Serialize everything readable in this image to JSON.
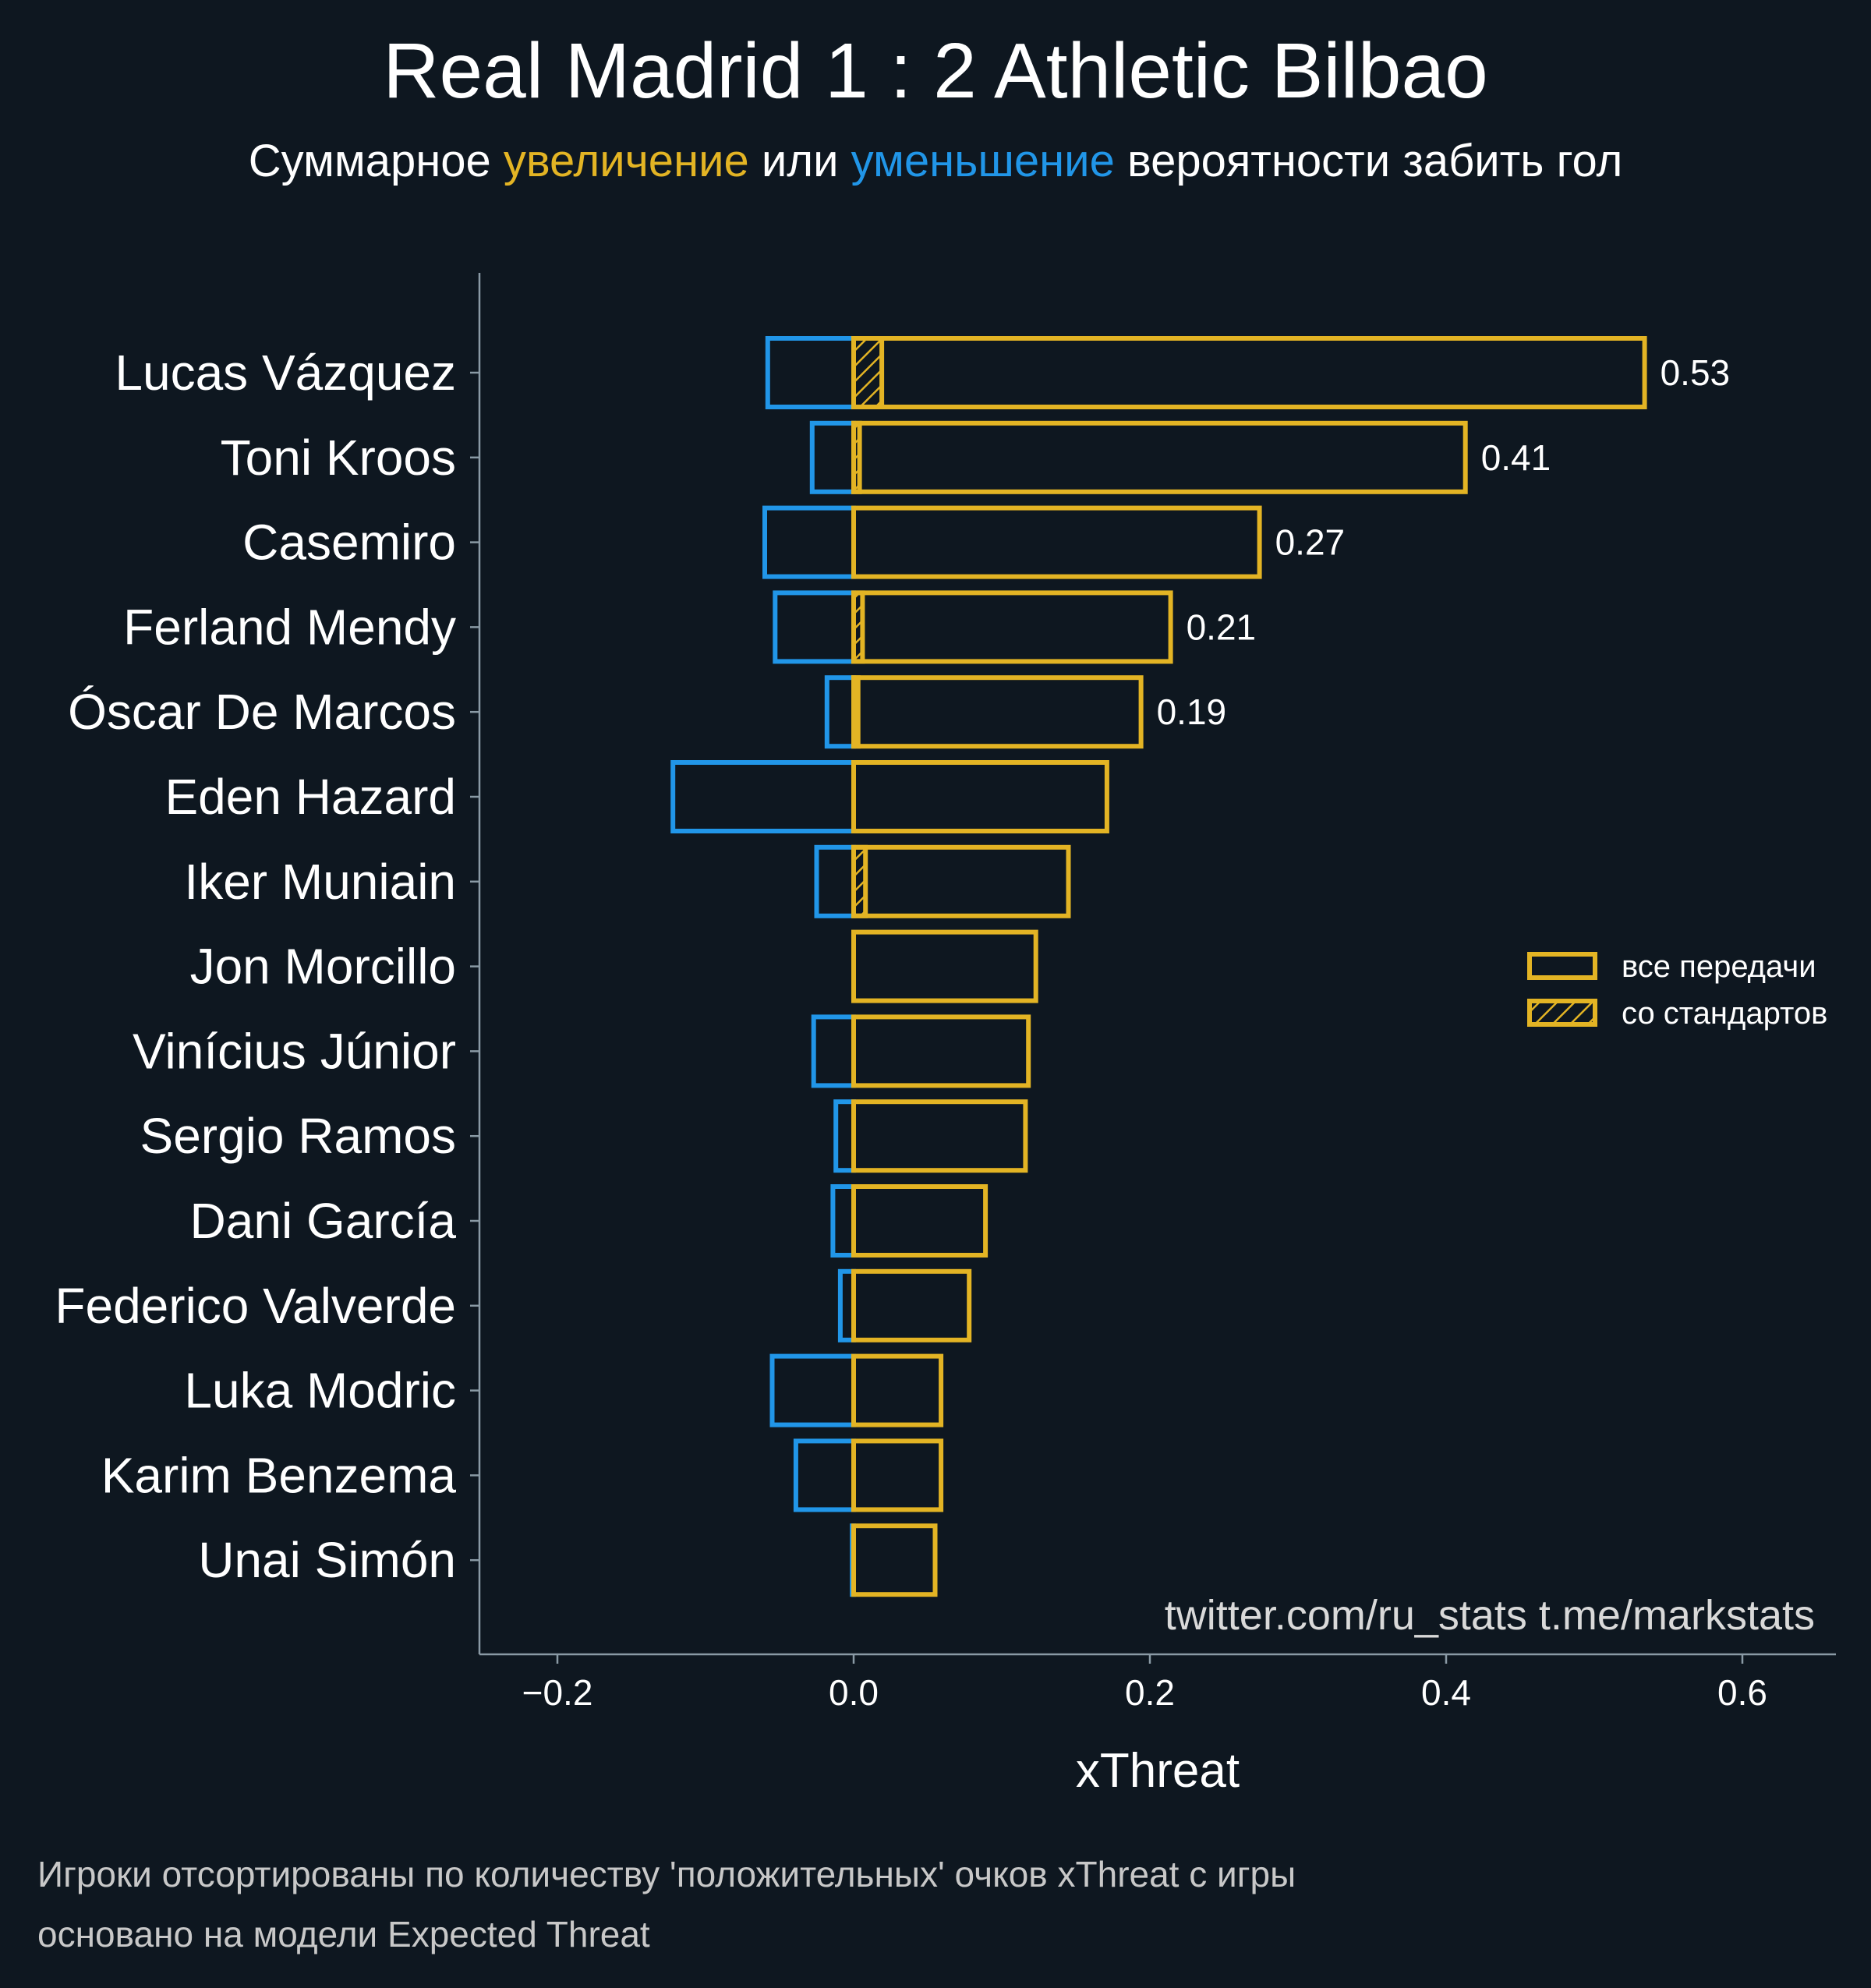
{
  "title": "Real Madrid 1 : 2 Athletic Bilbao",
  "subtitle": {
    "part1": "Суммарное ",
    "highlight_pos": "увеличение",
    "part2": " или ",
    "highlight_neg": "уменьшение",
    "part3": " вероятности забить гол"
  },
  "colors": {
    "background": "#0e1720",
    "positive": "#e3b424",
    "negative": "#2196e8",
    "axis": "#8a9aa5",
    "text": "#ffffff"
  },
  "credit": "twitter.com/ru_stats  t.me/markstats",
  "footnotes": [
    "Игроки отсортированы по количеству 'положительных' очков xThreat с игры",
    "основано на модели Expected Threat"
  ],
  "legend": {
    "placement": "center-right",
    "entries": [
      {
        "label": "все передачи",
        "hatched": false
      },
      {
        "label": "со стандартов",
        "hatched": true
      }
    ]
  },
  "chart_data": {
    "type": "bar",
    "orientation": "horizontal",
    "xlabel": "xThreat",
    "xlim": [
      -0.25,
      0.665
    ],
    "xticks": [
      -0.2,
      0.0,
      0.2,
      0.4,
      0.6
    ],
    "xtick_labels": [
      "−0.2",
      "0.0",
      "0.2",
      "0.4",
      "0.6"
    ],
    "categories": [
      "Lucas Vázquez",
      "Toni Kroos",
      "Casemiro",
      "Ferland Mendy",
      "Óscar De Marcos",
      "Eden Hazard",
      "Iker Muniain",
      "Jon Morcillo",
      "Vinícius Júnior",
      "Sergio Ramos",
      "Dani García",
      "Federico Valverde",
      "Luka Modric",
      "Karim Benzema",
      "Unai Simón"
    ],
    "series": [
      {
        "name": "все передачи",
        "role": "positive",
        "values": [
          0.534,
          0.413,
          0.274,
          0.214,
          0.194,
          0.171,
          0.145,
          0.123,
          0.118,
          0.116,
          0.089,
          0.078,
          0.059,
          0.059,
          0.055
        ]
      },
      {
        "name": "со стандартов",
        "role": "positive-setpieces",
        "values": [
          0.019,
          0.004,
          0.0,
          0.006,
          0.003,
          0.0,
          0.008,
          0.0,
          0.0,
          0.0,
          0.0,
          0.0,
          0.0,
          0.0,
          0.0
        ]
      },
      {
        "role": "negative",
        "values": [
          -0.058,
          -0.028,
          -0.06,
          -0.053,
          -0.018,
          -0.122,
          -0.025,
          0.0,
          -0.027,
          -0.012,
          -0.014,
          -0.009,
          -0.055,
          -0.039,
          -0.001
        ]
      }
    ],
    "data_labels": [
      "0.53",
      "0.41",
      "0.27",
      "0.21",
      "0.19",
      "",
      "",
      "",
      "",
      "",
      "",
      "",
      "",
      "",
      ""
    ],
    "grid": false
  }
}
